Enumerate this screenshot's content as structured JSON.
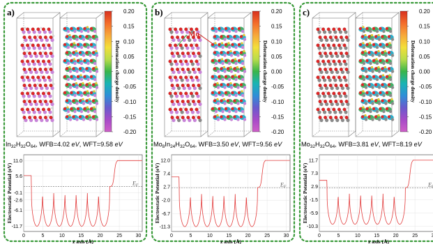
{
  "colorbar": {
    "label": "Deformation charge density",
    "ticks": [
      "0.20",
      "0.15",
      "0.10",
      "0.05",
      "0.00",
      "-0.05",
      "-0.10",
      "-0.15",
      "-0.20"
    ],
    "colors": [
      "#d7301f",
      "#f46d2b",
      "#f7a83a",
      "#f3df3a",
      "#b8dd4a",
      "#39b54a",
      "#18b4b4",
      "#2e8fd8",
      "#6a5acd",
      "#a64bc8",
      "#cf5ec8"
    ]
  },
  "atom_colors": {
    "oxygen": "#e02626",
    "indium": "#c884d8",
    "hydrogen": "#f2f2f2",
    "molybdenum": "#8a8a8a",
    "density_green": "#2faa5a",
    "density_cyan": "#1aa7c7",
    "density_yellow": "#e8c52a"
  },
  "mo_label": "Mo",
  "panels": [
    {
      "letter": "a)",
      "formula": {
        "parts": [
          [
            "In",
            ""
          ],
          [
            "32",
            "sub"
          ],
          [
            "H",
            ""
          ],
          [
            "32",
            "sub"
          ],
          [
            "O",
            ""
          ],
          [
            "64",
            "sub"
          ]
        ],
        "wfb_label": ", WFB=",
        "wfb": "4.02",
        "unit": " eV",
        "wft_label": ", WFT=",
        "wft": "9.58",
        "unit2": " eV"
      },
      "chart_data": {
        "type": "line",
        "ylabel": "Electrostatic Potential (eV)",
        "xlabel": "z axis (Å)",
        "x_ticks": [
          0,
          5,
          10,
          15,
          20,
          25,
          30
        ],
        "y_ticks": [
          "11.0",
          "5.6",
          "-0.1",
          "-2.6",
          "-6.1",
          "-11.7"
        ],
        "y_tick_values": [
          11.0,
          5.6,
          -0.1,
          -2.6,
          -6.1,
          -11.7
        ],
        "ylim": [
          -13.5,
          13.0
        ],
        "xlim": [
          0,
          31
        ],
        "fermi_level": 2.0,
        "fermi_label": "E",
        "fermi_sub": "F",
        "left_plateau": 5.8,
        "right_plateau": 11.0,
        "well_min": -11.7,
        "well_count": 7
      }
    },
    {
      "letter": "b)",
      "formula": {
        "parts": [
          [
            "Mo",
            ""
          ],
          [
            "8",
            "sub"
          ],
          [
            "In",
            ""
          ],
          [
            "24",
            "sub"
          ],
          [
            "H",
            ""
          ],
          [
            "32",
            "sub"
          ],
          [
            "O",
            ""
          ],
          [
            "64",
            "sub"
          ]
        ],
        "wfb_label": ", WFB=",
        "wfb": "3.50",
        "unit": " eV",
        "wft_label": ", WFT=",
        "wft": "9.56",
        "unit2": " eV"
      },
      "chart_data": {
        "type": "line",
        "ylabel": "Electrostatic Potential (eV)",
        "xlabel": "z axis (Å)",
        "x_ticks": [
          0,
          5,
          10,
          15,
          20,
          25,
          30
        ],
        "y_ticks": [
          "12.0",
          "7.4",
          "2.7",
          "-2.0",
          "-6.7",
          "-11.3"
        ],
        "y_tick_values": [
          12.0,
          7.4,
          2.7,
          -2.0,
          -6.7,
          -11.3
        ],
        "ylim": [
          -13.0,
          14.0
        ],
        "xlim": [
          0,
          31
        ],
        "fermi_level": 2.4,
        "fermi_label": "E",
        "fermi_sub": "F",
        "left_plateau": 6.2,
        "right_plateau": 12.0,
        "well_min": -11.3,
        "well_count": 7
      }
    },
    {
      "letter": "c)",
      "formula": {
        "parts": [
          [
            "Mo",
            ""
          ],
          [
            "32",
            "sub"
          ],
          [
            "H",
            ""
          ],
          [
            "32",
            "sub"
          ],
          [
            "O",
            ""
          ],
          [
            "64",
            "sub"
          ]
        ],
        "wfb_label": ", WFB=",
        "wfb": "3.81",
        "unit": " eV",
        "wft_label": ", WFT=",
        "wft": "8.19",
        "unit2": " eV"
      },
      "chart_data": {
        "type": "line",
        "ylabel": "Electrostatic Potential (eV)",
        "xlabel": "z axis (Å)",
        "x_ticks": [
          0,
          5,
          10,
          15,
          20,
          25,
          30
        ],
        "y_ticks": [
          "11.7",
          "7.3",
          "2.9",
          "-1.5",
          "-5.9",
          "-10.3"
        ],
        "y_tick_values": [
          11.7,
          7.3,
          2.9,
          -1.5,
          -5.9,
          -10.3
        ],
        "ylim": [
          -12.0,
          13.5
        ],
        "xlim": [
          0,
          31
        ],
        "fermi_level": 2.5,
        "fermi_label": "E",
        "fermi_sub": "F",
        "left_plateau": 5.0,
        "right_plateau": 11.7,
        "well_min": -9.6,
        "well_count": 7
      }
    }
  ]
}
